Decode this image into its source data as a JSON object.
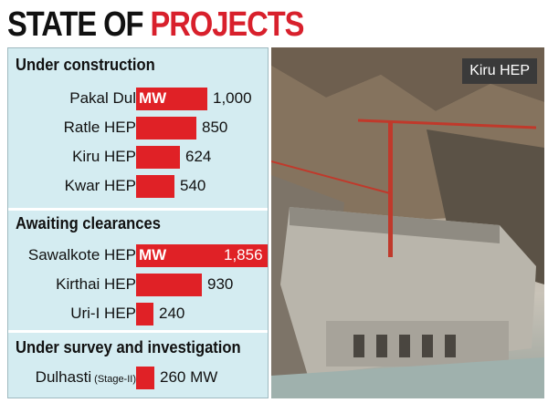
{
  "title": {
    "part1": "STATE OF ",
    "part2": "PROJECTS"
  },
  "chart_data": {
    "type": "bar",
    "orientation": "horizontal",
    "unit": "MW",
    "groups": [
      {
        "title": "Under construction",
        "unit_label_on": "Pakal Dul",
        "items": [
          {
            "name": "Pakal Dul",
            "value": 1000,
            "label": "1,000"
          },
          {
            "name": "Ratle HEP",
            "value": 850,
            "label": "850"
          },
          {
            "name": "Kiru HEP",
            "value": 624,
            "label": "624"
          },
          {
            "name": "Kwar HEP",
            "value": 540,
            "label": "540"
          }
        ]
      },
      {
        "title": "Awaiting clearances",
        "unit_label_on": "Sawalkote HEP",
        "items": [
          {
            "name": "Sawalkote HEP",
            "value": 1856,
            "label": "1,856"
          },
          {
            "name": "Kirthai HEP",
            "value": 930,
            "label": "930"
          },
          {
            "name": "Uri-I HEP",
            "value": 240,
            "label": "240"
          }
        ]
      },
      {
        "title": "Under survey and investigation",
        "items": [
          {
            "name": "Dulhasti",
            "name_suffix": "(Stage-II)",
            "value": 260,
            "label": "260 MW"
          }
        ]
      }
    ]
  },
  "photo": {
    "label": "Kiru HEP"
  },
  "colors": {
    "accent": "#d8202c",
    "bar": "#e02126",
    "panel": "#d4ecf1"
  }
}
